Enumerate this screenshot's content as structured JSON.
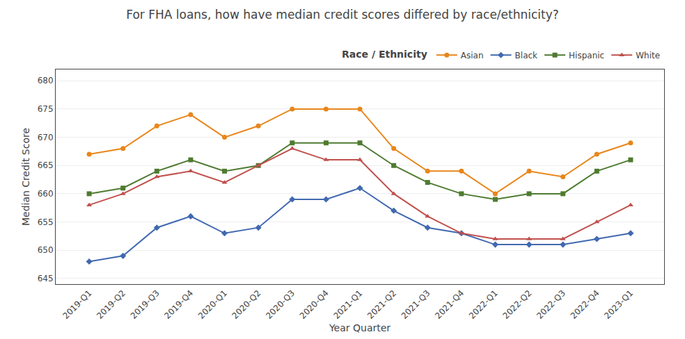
{
  "chart_data": {
    "type": "line",
    "title": "For FHA loans, how have median credit scores differed by race/ethnicity?",
    "x_label": "Year Quarter",
    "y_label": "Median Credit Score",
    "legend_title": "Race / Ethnicity",
    "categories": [
      "2019-Q1",
      "2019-Q2",
      "2019-Q3",
      "2019-Q4",
      "2020-Q1",
      "2020-Q2",
      "2020-Q3",
      "2020-Q4",
      "2021-Q1",
      "2021-Q2",
      "2021-Q3",
      "2021-Q4",
      "2022-Q1",
      "2022-Q2",
      "2022-Q3",
      "2022-Q4",
      "2023-Q1"
    ],
    "series": [
      {
        "name": "Asian",
        "color": "#E8861A",
        "marker": "circle",
        "values": [
          667,
          668,
          672,
          674,
          670,
          672,
          675,
          675,
          675,
          668,
          664,
          664,
          660,
          664,
          663,
          667,
          669
        ]
      },
      {
        "name": "Black",
        "color": "#4169B0",
        "marker": "diamond",
        "values": [
          648,
          649,
          654,
          656,
          653,
          654,
          659,
          659,
          661,
          657,
          654,
          653,
          651,
          651,
          651,
          652,
          653
        ]
      },
      {
        "name": "Hispanic",
        "color": "#4E7B30",
        "marker": "square",
        "values": [
          660,
          661,
          664,
          666,
          664,
          665,
          669,
          669,
          669,
          665,
          662,
          660,
          659,
          660,
          660,
          664,
          666
        ]
      },
      {
        "name": "White",
        "color": "#C0504D",
        "marker": "triangle-up",
        "values": [
          658,
          660,
          663,
          664,
          662,
          665,
          668,
          666,
          666,
          660,
          656,
          653,
          652,
          652,
          652,
          655,
          658
        ]
      }
    ],
    "ylim": [
      644,
      682
    ],
    "yticks": [
      645,
      650,
      655,
      660,
      665,
      670,
      675,
      680
    ],
    "grid": true,
    "legend": "upper right"
  }
}
